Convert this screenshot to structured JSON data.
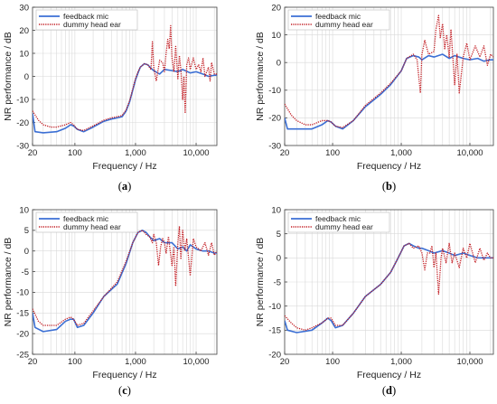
{
  "figure": {
    "colors": {
      "feedback": "#3b6fd4",
      "dummy": "#c0171d",
      "grid": "#d9d9d9",
      "axis": "#444444"
    }
  },
  "chart_data": [
    {
      "type": "line",
      "panel_label": "a",
      "xlabel": "Frequency / Hz",
      "ylabel": "NR performance / dB",
      "xscale": "log",
      "xlim": [
        20,
        22000
      ],
      "ylim": [
        -30,
        30
      ],
      "xticks": [
        20,
        100,
        1000,
        10000
      ],
      "xtick_labels": [
        "20",
        "100",
        "1,000",
        "10,000"
      ],
      "yticks": [
        -30,
        -20,
        -10,
        0,
        10,
        20,
        30
      ],
      "grid": true,
      "legend_position": "top-left",
      "series": [
        {
          "name": "feedback mic",
          "style": "solid",
          "x": [
            20,
            22,
            30,
            50,
            70,
            85,
            95,
            110,
            140,
            200,
            300,
            400,
            500,
            600,
            700,
            800,
            900,
            1000,
            1100,
            1200,
            1400,
            1600,
            1800,
            2000,
            2500,
            3000,
            4000,
            5000,
            6000,
            8000,
            10000,
            13000,
            16000,
            20000,
            22000
          ],
          "y": [
            -16,
            -24,
            -24.5,
            -24,
            -22.5,
            -21,
            -21.5,
            -23,
            -24,
            -22,
            -19.5,
            -18.5,
            -18,
            -17.5,
            -15,
            -11,
            -6,
            -1.5,
            1.5,
            4,
            5.5,
            5,
            3.5,
            2.5,
            1,
            3,
            2.5,
            2,
            3,
            1.5,
            2,
            1,
            0,
            0.5,
            0.5
          ]
        },
        {
          "name": "dummy head ear",
          "style": "dotted",
          "x": [
            20,
            25,
            30,
            40,
            50,
            70,
            85,
            95,
            110,
            140,
            200,
            300,
            400,
            500,
            600,
            700,
            800,
            900,
            1000,
            1100,
            1200,
            1400,
            1600,
            1800,
            1900,
            2000,
            2200,
            2500,
            2800,
            3000,
            3200,
            3400,
            3600,
            3800,
            4000,
            4300,
            4600,
            5000,
            5300,
            5600,
            6000,
            6300,
            6600,
            7000,
            7500,
            8000,
            9000,
            10000,
            11000,
            12000,
            13000,
            14000,
            16000,
            17000,
            18000,
            20000,
            22000
          ],
          "y": [
            -15,
            -19,
            -21,
            -22,
            -22,
            -21,
            -20,
            -21,
            -23,
            -23.5,
            -21.5,
            -19,
            -18,
            -17.5,
            -17,
            -14.5,
            -10.5,
            -5.5,
            -1,
            2,
            4,
            5.5,
            5,
            3,
            15,
            4,
            -2,
            7,
            6,
            2,
            10,
            16,
            12,
            22,
            8,
            2,
            13,
            -1,
            9,
            3,
            -10,
            0,
            -16,
            5,
            8,
            3,
            8,
            3,
            5,
            2,
            8,
            0,
            4,
            -2,
            6,
            1,
            1
          ]
        }
      ]
    },
    {
      "type": "line",
      "panel_label": "b",
      "xlabel": "Frequency / Hz",
      "ylabel": "NR performance / dB",
      "xscale": "log",
      "xlim": [
        20,
        22000
      ],
      "ylim": [
        -30,
        20
      ],
      "xticks": [
        20,
        100,
        1000,
        10000
      ],
      "xtick_labels": [
        "20",
        "100",
        "1,000",
        "10,000"
      ],
      "yticks": [
        -30,
        -20,
        -10,
        0,
        10,
        20
      ],
      "grid": true,
      "legend_position": "top-left",
      "series": [
        {
          "name": "feedback mic",
          "style": "solid",
          "x": [
            20,
            22,
            30,
            50,
            70,
            85,
            95,
            110,
            140,
            200,
            300,
            500,
            700,
            1000,
            1200,
            1500,
            1800,
            2000,
            2500,
            3000,
            4000,
            5000,
            6000,
            8000,
            10000,
            13000,
            16000,
            20000,
            22000
          ],
          "y": [
            -20,
            -24,
            -24,
            -24,
            -22.5,
            -21,
            -21.5,
            -23,
            -24,
            -21,
            -16,
            -11.5,
            -8,
            -3,
            1.5,
            2.5,
            2,
            1,
            2.5,
            2,
            3,
            1.5,
            2.5,
            1.5,
            1,
            1.5,
            0.5,
            1,
            1
          ]
        },
        {
          "name": "dummy head ear",
          "style": "dotted",
          "x": [
            20,
            25,
            30,
            40,
            50,
            70,
            85,
            95,
            110,
            140,
            200,
            300,
            500,
            700,
            1000,
            1200,
            1500,
            1700,
            1900,
            2000,
            2200,
            2500,
            3000,
            3200,
            3500,
            3700,
            4000,
            4300,
            4600,
            5000,
            5300,
            6000,
            6500,
            7000,
            8000,
            9000,
            10000,
            12000,
            14000,
            16000,
            18000,
            20000,
            22000
          ],
          "y": [
            -15,
            -19,
            -21,
            -22.5,
            -22.5,
            -21,
            -21,
            -21.5,
            -23,
            -23.5,
            -21,
            -15.5,
            -11,
            -7.5,
            -3,
            1.5,
            3,
            1,
            -11,
            3,
            8,
            3,
            4,
            12,
            17,
            9,
            14,
            5,
            10,
            2,
            12,
            -8,
            3,
            -11,
            2,
            7,
            1,
            6,
            2,
            6,
            -1,
            3,
            2
          ]
        }
      ]
    },
    {
      "type": "line",
      "panel_label": "c",
      "xlabel": "Frequency / Hz",
      "ylabel": "NR performance / dB",
      "xscale": "log",
      "xlim": [
        20,
        22000
      ],
      "ylim": [
        -25,
        10
      ],
      "xticks": [
        20,
        100,
        1000,
        10000
      ],
      "xtick_labels": [
        "20",
        "100",
        "1,000",
        "10,000"
      ],
      "yticks": [
        -25,
        -20,
        -15,
        -10,
        -5,
        0,
        5,
        10
      ],
      "grid": true,
      "legend_position": "top-left",
      "series": [
        {
          "name": "feedback mic",
          "style": "solid",
          "x": [
            20,
            22,
            30,
            50,
            70,
            85,
            95,
            110,
            140,
            200,
            300,
            500,
            700,
            900,
            1100,
            1300,
            1500,
            1700,
            2000,
            2500,
            3000,
            4000,
            5000,
            6000,
            7000,
            8000,
            10000,
            13000,
            16000,
            20000,
            22000
          ],
          "y": [
            -15,
            -18.5,
            -19.5,
            -19,
            -17,
            -16.5,
            -16.5,
            -18.5,
            -18,
            -15,
            -11,
            -8,
            -3,
            2,
            4.5,
            5,
            4.5,
            3.5,
            2.5,
            3,
            2,
            2,
            0.5,
            1,
            0,
            1.5,
            0.5,
            0,
            0,
            -0.5,
            -0.5
          ]
        },
        {
          "name": "dummy head ear",
          "style": "dotted",
          "x": [
            20,
            25,
            30,
            40,
            50,
            70,
            85,
            95,
            110,
            140,
            200,
            300,
            500,
            700,
            900,
            1100,
            1300,
            1500,
            1700,
            1900,
            2000,
            2200,
            2400,
            2600,
            2800,
            3000,
            3200,
            3500,
            4000,
            4300,
            4600,
            5000,
            5300,
            5600,
            6000,
            6500,
            7000,
            8000,
            9000,
            10000,
            12000,
            14000,
            16000,
            18000,
            20000,
            22000
          ],
          "y": [
            -14,
            -17,
            -18,
            -18,
            -18,
            -16.5,
            -16,
            -16.5,
            -18,
            -17.5,
            -14.5,
            -11,
            -7.5,
            -2.5,
            2,
            4.5,
            5,
            4,
            3.5,
            2,
            4,
            2,
            -3.5,
            1,
            3,
            2,
            -0.5,
            3.5,
            -3.5,
            1,
            -8.5,
            2,
            6,
            -2,
            5,
            0,
            3,
            -6,
            3,
            1,
            0,
            2,
            -1,
            2,
            -1,
            0
          ]
        }
      ]
    },
    {
      "type": "line",
      "panel_label": "d",
      "xlabel": "Frequency / Hz",
      "ylabel": "NR performance / dB",
      "xscale": "log",
      "xlim": [
        20,
        22000
      ],
      "ylim": [
        -20,
        10
      ],
      "xticks": [
        20,
        100,
        1000,
        10000
      ],
      "xtick_labels": [
        "20",
        "100",
        "1,000",
        "10,000"
      ],
      "yticks": [
        -20,
        -15,
        -10,
        -5,
        0,
        5,
        10
      ],
      "grid": true,
      "legend_position": "top-left",
      "series": [
        {
          "name": "feedback mic",
          "style": "solid",
          "x": [
            20,
            22,
            30,
            50,
            70,
            85,
            95,
            110,
            140,
            200,
            300,
            500,
            700,
            900,
            1100,
            1300,
            1500,
            1800,
            2000,
            2500,
            3000,
            4000,
            5000,
            6000,
            8000,
            10000,
            13000,
            16000,
            20000,
            22000
          ],
          "y": [
            -13,
            -15,
            -15.5,
            -15,
            -13.5,
            -12.5,
            -13,
            -14.5,
            -14,
            -11.5,
            -8,
            -5.5,
            -3,
            0,
            2.5,
            3,
            2.5,
            2,
            2,
            1.5,
            1,
            1.5,
            1,
            0.5,
            1,
            0.5,
            0,
            0,
            0,
            0
          ]
        },
        {
          "name": "dummy head ear",
          "style": "dotted",
          "x": [
            20,
            25,
            30,
            40,
            50,
            70,
            85,
            95,
            110,
            140,
            200,
            300,
            500,
            700,
            900,
            1100,
            1300,
            1500,
            1800,
            2000,
            2200,
            2400,
            2600,
            2800,
            3000,
            3200,
            3500,
            3800,
            4000,
            4500,
            5000,
            5500,
            6000,
            7000,
            8000,
            9000,
            10000,
            12000,
            14000,
            16000,
            18000,
            20000,
            22000
          ],
          "y": [
            -12,
            -13.5,
            -14.5,
            -15,
            -14.5,
            -13.5,
            -12.5,
            -12.5,
            -14,
            -14,
            -11.5,
            -8,
            -5.5,
            -3,
            0,
            2.5,
            3,
            2,
            2.5,
            1,
            -2.5,
            1,
            1,
            2.5,
            -2,
            1,
            -7.5,
            0,
            2,
            -1,
            3,
            -1,
            1,
            -2,
            2,
            0,
            3,
            -1,
            2,
            -0.5,
            1,
            0,
            0
          ]
        }
      ]
    }
  ]
}
